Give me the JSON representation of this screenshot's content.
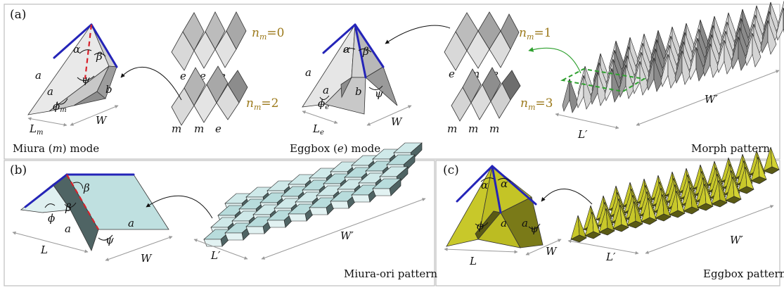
{
  "panels": {
    "a": {
      "label": "(a)",
      "miura_caption_pre": "Miura (",
      "miura_caption_var": "m",
      "miura_caption_post": ") mode",
      "eggbox_caption_pre": "Eggbox (",
      "eggbox_caption_var": "e",
      "eggbox_caption_post": ") mode",
      "morph_caption": "Morph pattern",
      "nm_values": [
        "=0",
        "=2",
        "=1",
        "=3"
      ],
      "nm_symbol": "n",
      "nm_sub": "m",
      "seq_nm0": [
        "e",
        "e",
        "e"
      ],
      "seq_nm2": [
        "m",
        "m",
        "e"
      ],
      "seq_nm1": [
        "e",
        "m",
        "e"
      ],
      "seq_nm3": [
        "m",
        "m",
        "m"
      ]
    },
    "b": {
      "label": "(b)",
      "caption": "Miura-ori pattern"
    },
    "c": {
      "label": "(c)",
      "caption": "Eggbox pattern"
    }
  },
  "symbols": {
    "a": "a",
    "b": "b",
    "alpha": "α",
    "beta": "β",
    "psi": "ψ",
    "phi": "ϕ",
    "L": "L",
    "W": "W",
    "Lp": "L′",
    "Wp": "W′",
    "sub_m": "m",
    "sub_e": "e"
  },
  "colors": {
    "edge_blue": "#2424b8",
    "crease_red": "#d8202a",
    "miura_light": "#e6e6e6",
    "miura_mid": "#c4c4c4",
    "miura_dark": "#8e8e8e",
    "teal_light": "#b8dcdc",
    "teal_dark": "#4f6464",
    "yellow_light": "#c8c82a",
    "yellow_dark": "#5a5a14",
    "nm_gold": "#9c7a1c",
    "arrow_green": "#2ea02e"
  }
}
